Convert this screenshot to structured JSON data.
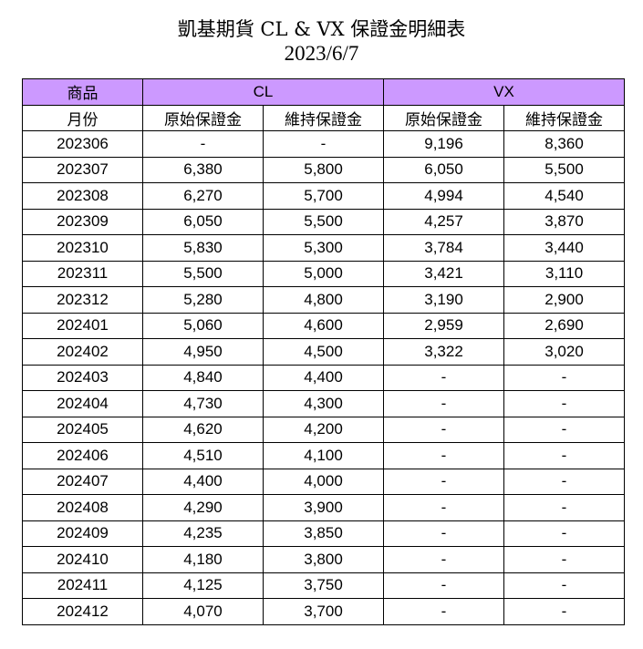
{
  "title": "凱基期貨 CL & VX 保證金明細表",
  "date": "2023/6/7",
  "colors": {
    "header_bg": "#cc99ff"
  },
  "table": {
    "header1": {
      "product": "商品",
      "cl": "CL",
      "vx": "VX"
    },
    "header2": [
      "月份",
      "原始保證金",
      "維持保證金",
      "原始保證金",
      "維持保證金"
    ],
    "rows": [
      [
        "202306",
        "-",
        "-",
        "9,196",
        "8,360"
      ],
      [
        "202307",
        "6,380",
        "5,800",
        "6,050",
        "5,500"
      ],
      [
        "202308",
        "6,270",
        "5,700",
        "4,994",
        "4,540"
      ],
      [
        "202309",
        "6,050",
        "5,500",
        "4,257",
        "3,870"
      ],
      [
        "202310",
        "5,830",
        "5,300",
        "3,784",
        "3,440"
      ],
      [
        "202311",
        "5,500",
        "5,000",
        "3,421",
        "3,110"
      ],
      [
        "202312",
        "5,280",
        "4,800",
        "3,190",
        "2,900"
      ],
      [
        "202401",
        "5,060",
        "4,600",
        "2,959",
        "2,690"
      ],
      [
        "202402",
        "4,950",
        "4,500",
        "3,322",
        "3,020"
      ],
      [
        "202403",
        "4,840",
        "4,400",
        "-",
        "-"
      ],
      [
        "202404",
        "4,730",
        "4,300",
        "-",
        "-"
      ],
      [
        "202405",
        "4,620",
        "4,200",
        "-",
        "-"
      ],
      [
        "202406",
        "4,510",
        "4,100",
        "-",
        "-"
      ],
      [
        "202407",
        "4,400",
        "4,000",
        "-",
        "-"
      ],
      [
        "202408",
        "4,290",
        "3,900",
        "-",
        "-"
      ],
      [
        "202409",
        "4,235",
        "3,850",
        "-",
        "-"
      ],
      [
        "202410",
        "4,180",
        "3,800",
        "-",
        "-"
      ],
      [
        "202411",
        "4,125",
        "3,750",
        "-",
        "-"
      ],
      [
        "202412",
        "4,070",
        "3,700",
        "-",
        "-"
      ]
    ]
  }
}
